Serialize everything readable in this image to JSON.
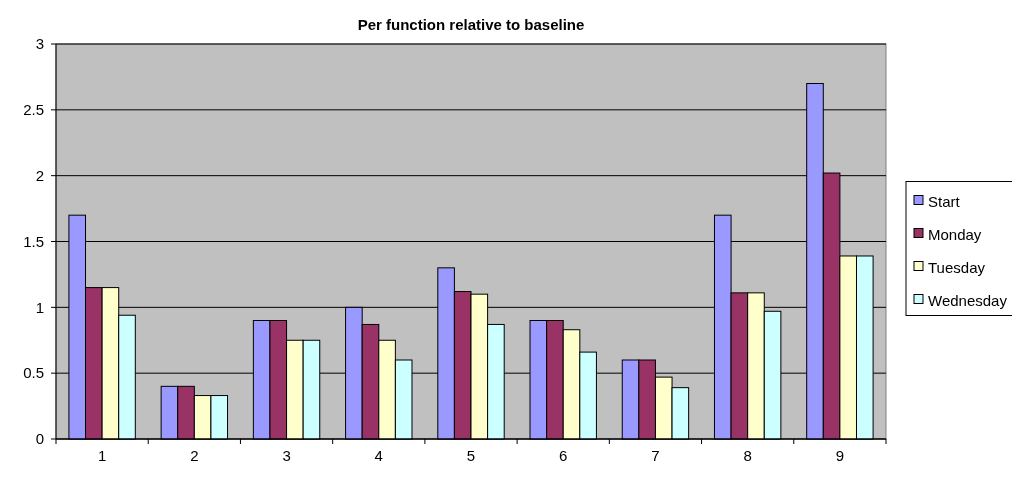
{
  "chart_data": {
    "type": "bar",
    "title": "Per function relative to baseline",
    "categories": [
      "1",
      "2",
      "3",
      "4",
      "5",
      "6",
      "7",
      "8",
      "9"
    ],
    "series": [
      {
        "name": "Start",
        "color": "#9999ff",
        "values": [
          1.7,
          0.4,
          0.9,
          1.0,
          1.3,
          0.9,
          0.6,
          1.7,
          2.7
        ]
      },
      {
        "name": "Monday",
        "color": "#993366",
        "values": [
          1.15,
          0.4,
          0.9,
          0.87,
          1.12,
          0.9,
          0.6,
          1.11,
          2.02
        ]
      },
      {
        "name": "Tuesday",
        "color": "#ffffcc",
        "values": [
          1.15,
          0.33,
          0.75,
          0.75,
          1.1,
          0.83,
          0.47,
          1.11,
          1.39
        ]
      },
      {
        "name": "Wednesday",
        "color": "#ccffff",
        "values": [
          0.94,
          0.33,
          0.75,
          0.6,
          0.87,
          0.66,
          0.39,
          0.97,
          1.39
        ]
      }
    ],
    "ylim": [
      0,
      3
    ],
    "yticks": [
      0,
      0.5,
      1,
      1.5,
      2,
      2.5,
      3
    ],
    "grid": "y",
    "legend": "right"
  }
}
